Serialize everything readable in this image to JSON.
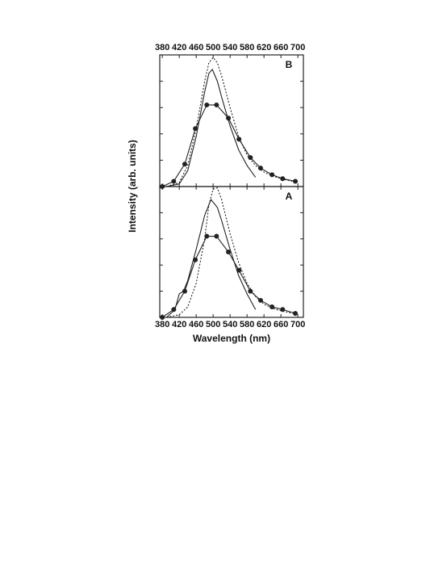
{
  "chart_data": [
    {
      "type": "line",
      "panel_label": "B",
      "ylabel": "Intensity (arb. units)",
      "xtick_side": "top",
      "xlim": [
        374,
        713
      ],
      "xticks": [
        380,
        420,
        460,
        500,
        540,
        580,
        620,
        660,
        700
      ],
      "ylim": [
        0,
        5
      ],
      "yticks": [
        1,
        2,
        3,
        4
      ],
      "series": [
        {
          "color": "#222222",
          "line_style": "dotted",
          "markers": false,
          "x": [
            390,
            420,
            440,
            460,
            480,
            490,
            500,
            510,
            520,
            540,
            560,
            580,
            600,
            620,
            640,
            660,
            680,
            700
          ],
          "values": [
            0,
            0.15,
            0.8,
            2.2,
            4.0,
            4.7,
            4.9,
            4.7,
            4.2,
            3.0,
            1.9,
            1.2,
            0.8,
            0.55,
            0.4,
            0.3,
            0.22,
            0.18
          ]
        },
        {
          "color": "#222222",
          "line_style": "solid",
          "markers": false,
          "x": [
            390,
            420,
            440,
            460,
            480,
            490,
            498,
            510,
            520,
            540,
            560,
            580,
            600
          ],
          "values": [
            0,
            0.1,
            0.6,
            1.9,
            3.6,
            4.3,
            4.45,
            4.0,
            3.4,
            2.3,
            1.4,
            0.8,
            0.35
          ]
        },
        {
          "color": "#222222",
          "line_style": "solid",
          "markers": true,
          "x": [
            380,
            407,
            433,
            458,
            485,
            508,
            536,
            561,
            588,
            612,
            639,
            664,
            694
          ],
          "values": [
            0,
            0.2,
            0.85,
            2.2,
            3.1,
            3.1,
            2.6,
            1.8,
            1.1,
            0.7,
            0.45,
            0.3,
            0.2
          ]
        }
      ]
    },
    {
      "type": "line",
      "panel_label": "A",
      "xlabel": "Wavelength (nm)",
      "xtick_side": "bottom",
      "xlim": [
        374,
        713
      ],
      "xticks": [
        380,
        420,
        460,
        500,
        540,
        580,
        620,
        660,
        700
      ],
      "ylim": [
        0,
        5
      ],
      "yticks": [
        1,
        2,
        3,
        4
      ],
      "series": [
        {
          "color": "#222222",
          "line_style": "dotted",
          "markers": false,
          "x": [
            390,
            420,
            440,
            460,
            480,
            490,
            500,
            510,
            520,
            540,
            560,
            580,
            600,
            620,
            640,
            660,
            680,
            700
          ],
          "values": [
            0,
            0.1,
            0.4,
            1.3,
            3.0,
            4.3,
            4.9,
            4.95,
            4.5,
            3.2,
            2.1,
            1.3,
            0.8,
            0.5,
            0.35,
            0.25,
            0.18,
            0.15
          ]
        },
        {
          "color": "#222222",
          "line_style": "solid",
          "markers": false,
          "x": [
            390,
            410,
            420,
            430,
            440,
            460,
            480,
            495,
            510,
            520,
            540,
            560,
            580,
            600
          ],
          "values": [
            0,
            0.3,
            0.9,
            1.0,
            1.4,
            2.6,
            3.9,
            4.5,
            4.2,
            3.7,
            2.6,
            1.6,
            0.9,
            0.3
          ]
        },
        {
          "color": "#222222",
          "line_style": "solid",
          "markers": true,
          "x": [
            380,
            407,
            433,
            458,
            485,
            508,
            536,
            561,
            588,
            612,
            639,
            664,
            694
          ],
          "values": [
            0,
            0.3,
            1.0,
            2.2,
            3.1,
            3.1,
            2.5,
            1.8,
            1.0,
            0.65,
            0.4,
            0.3,
            0.15
          ]
        }
      ]
    }
  ]
}
